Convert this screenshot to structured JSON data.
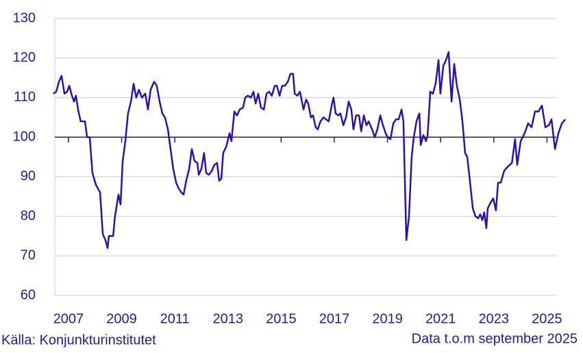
{
  "chart_data": {
    "type": "line",
    "x": [
      2006.43,
      2006.54,
      2006.64,
      2006.74,
      2006.85,
      2006.95,
      2007.03,
      2007.13,
      2007.21,
      2007.28,
      2007.36,
      2007.46,
      2007.62,
      2007.7,
      2007.8,
      2007.9,
      2008.03,
      2008.19,
      2008.29,
      2008.39,
      2008.47,
      2008.52,
      2008.68,
      2008.75,
      2008.88,
      2008.96,
      2009.04,
      2009.14,
      2009.24,
      2009.35,
      2009.45,
      2009.55,
      2009.65,
      2009.76,
      2009.89,
      2009.99,
      2010.09,
      2010.22,
      2010.32,
      2010.43,
      2010.53,
      2010.63,
      2010.74,
      2010.84,
      2010.94,
      2011.05,
      2011.15,
      2011.25,
      2011.33,
      2011.43,
      2011.54,
      2011.64,
      2011.74,
      2011.85,
      2011.9,
      2012.0,
      2012.1,
      2012.18,
      2012.28,
      2012.39,
      2012.49,
      2012.59,
      2012.67,
      2012.75,
      2012.82,
      2012.93,
      2013.06,
      2013.13,
      2013.24,
      2013.34,
      2013.44,
      2013.57,
      2013.65,
      2013.75,
      2013.86,
      2013.96,
      2014.04,
      2014.14,
      2014.24,
      2014.35,
      2014.45,
      2014.55,
      2014.65,
      2014.76,
      2014.84,
      2014.94,
      2015.04,
      2015.14,
      2015.25,
      2015.35,
      2015.45,
      2015.51,
      2015.61,
      2015.71,
      2015.84,
      2015.94,
      2016.02,
      2016.12,
      2016.2,
      2016.3,
      2016.38,
      2016.48,
      2016.59,
      2016.69,
      2016.79,
      2016.9,
      2016.97,
      2017.05,
      2017.15,
      2017.23,
      2017.34,
      2017.44,
      2017.54,
      2017.64,
      2017.72,
      2017.82,
      2017.93,
      2018.01,
      2018.11,
      2018.21,
      2018.29,
      2018.42,
      2018.52,
      2018.62,
      2018.73,
      2018.83,
      2018.93,
      2019.01,
      2019.11,
      2019.22,
      2019.32,
      2019.42,
      2019.53,
      2019.6,
      2019.71,
      2019.81,
      2019.91,
      2019.99,
      2020.09,
      2020.2,
      2020.25,
      2020.35,
      2020.45,
      2020.51,
      2020.61,
      2020.71,
      2020.81,
      2020.92,
      2020.99,
      2021.1,
      2021.2,
      2021.3,
      2021.41,
      2021.51,
      2021.61,
      2021.72,
      2021.82,
      2021.92,
      2022.0,
      2022.1,
      2022.21,
      2022.31,
      2022.41,
      2022.49,
      2022.57,
      2022.64,
      2022.72,
      2022.77,
      2022.88,
      2022.98,
      2023.08,
      2023.16,
      2023.26,
      2023.39,
      2023.52,
      2023.68,
      2023.8,
      2023.88,
      2024.01,
      2024.16,
      2024.29,
      2024.42,
      2024.55,
      2024.68,
      2024.81,
      2024.94,
      2025.07,
      2025.17,
      2025.3,
      2025.43,
      2025.56,
      2025.69
    ],
    "series": [
      {
        "color": "#2a12a8",
        "values": [
          111,
          111.5,
          114,
          115.5,
          111,
          111.5,
          113,
          110.5,
          109,
          110.5,
          107,
          104,
          104,
          100,
          100,
          91,
          88,
          86,
          75.5,
          74,
          72,
          75,
          75,
          80,
          85.5,
          83,
          94,
          99,
          106,
          109,
          113.5,
          110,
          112,
          110,
          111,
          107,
          112,
          114,
          113,
          109,
          106,
          105,
          102,
          97,
          92,
          88.5,
          87,
          86,
          85.5,
          89,
          92,
          97,
          94,
          93.5,
          90.5,
          92,
          96,
          91,
          90.5,
          91.5,
          93,
          93.5,
          89,
          89.5,
          96,
          97.5,
          101,
          99,
          106.5,
          105.5,
          107,
          107.5,
          110,
          110.5,
          110,
          111.5,
          108.5,
          111,
          107.5,
          107,
          111,
          111.5,
          110.5,
          113,
          113,
          110.5,
          113,
          113,
          114,
          116,
          116,
          111,
          110.5,
          111.5,
          107,
          109.5,
          108.5,
          105,
          105.5,
          102.5,
          102,
          104,
          105,
          104.5,
          104,
          108,
          110,
          106,
          105.5,
          106,
          103,
          105,
          109,
          107,
          102,
          105.5,
          105.5,
          101.5,
          105.5,
          103,
          104,
          102,
          100,
          102,
          105.5,
          103,
          101,
          100,
          99.5,
          103.5,
          104.5,
          104.5,
          107,
          104,
          74,
          80,
          95,
          100,
          104,
          106,
          98,
          100.5,
          99,
          100.5,
          111.5,
          111,
          113.5,
          119.5,
          111,
          118,
          119.5,
          121.5,
          109,
          118.5,
          113,
          109.5,
          104,
          96,
          95,
          89,
          82,
          80,
          79.5,
          80.5,
          79,
          81,
          77,
          82,
          83.5,
          84.5,
          81.5,
          88.5,
          88.5,
          91.5,
          92.5,
          93.5,
          99.5,
          93,
          99,
          101,
          103.5,
          102.5,
          106.5,
          106.5,
          108,
          102.5,
          103,
          104.5,
          97,
          101,
          103.5,
          104.5
        ]
      }
    ],
    "reference_line": 100,
    "xlim": [
      2006.28,
      2025.35
    ],
    "xticks": [
      2007,
      2009,
      2011,
      2013,
      2015,
      2017,
      2019,
      2021,
      2023,
      2025
    ],
    "ylim": [
      60,
      130
    ],
    "yticks": [
      60,
      70,
      80,
      90,
      100,
      110,
      120,
      130
    ],
    "grid": true,
    "source": "Källa: Konjunkturinstitutet",
    "note": "Data t.o.m september 2025"
  }
}
